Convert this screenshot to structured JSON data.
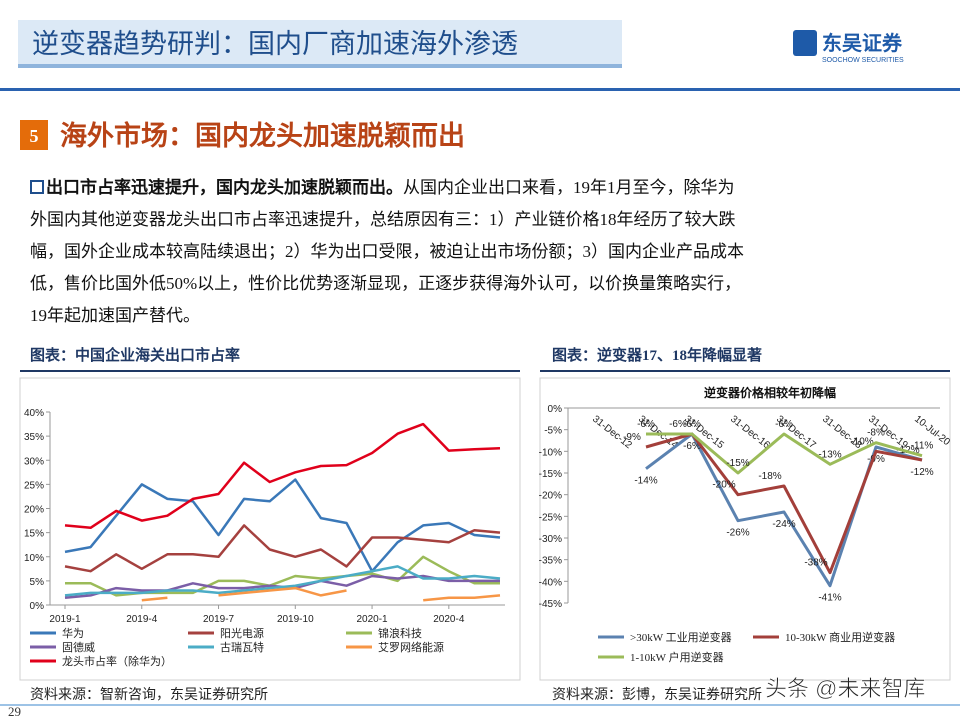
{
  "header": {
    "title": "逆变器趋势研判：国内厂商加速海外渗透",
    "logo_cn": "东吴证券",
    "logo_en": "SOOCHOW SECURITIES"
  },
  "section": {
    "number": "5",
    "title": "海外市场：国内龙头加速脱颖而出"
  },
  "body": {
    "lead": "出口市占率迅速提升，国内龙头加速脱颖而出。",
    "lines": [
      "从国内企业出口来看，19年1月至今，除华为",
      "外国内其他逆变器龙头出口市占率迅速提升，总结原因有三：1）产业链价格18年经历了较大跌",
      "幅，国外企业成本较高陆续退出；2）华为出口受限，被迫让出市场份额；3）国内企业产品成本",
      "低，售价比国外低50%以上，性价比优势逐渐显现，正逐步获得海外认可，以价换量策略实行，",
      "19年起加速国产替代。"
    ]
  },
  "chart_data": [
    {
      "type": "line",
      "caption": "图表：中国企业海关出口市占率",
      "source": "资料来源：智新咨询，东吴证券研究所",
      "categories": [
        "2019-1",
        null,
        null,
        "2019-4",
        null,
        null,
        "2019-7",
        null,
        null,
        "2019-10",
        null,
        null,
        "2020-1",
        null,
        null,
        "2020-4",
        null,
        null
      ],
      "ylim": [
        0,
        40
      ],
      "yticks": [
        {
          "value": 0,
          "label": "0%"
        },
        {
          "value": 5,
          "label": "5%"
        },
        {
          "value": 10,
          "label": "10%"
        },
        {
          "value": 15,
          "label": "15%"
        },
        {
          "value": 20,
          "label": "20%"
        },
        {
          "value": 25,
          "label": "25%"
        },
        {
          "value": 30,
          "label": "30%"
        },
        {
          "value": 35,
          "label": "35%"
        },
        {
          "value": 40,
          "label": "40%"
        }
      ],
      "series": [
        {
          "name": "华为",
          "color": "#3a78b8",
          "values": [
            11,
            12,
            18.5,
            25,
            22,
            21.5,
            14.5,
            22,
            21.5,
            26,
            18,
            17,
            7,
            13,
            16.5,
            17,
            14.5,
            14
          ]
        },
        {
          "name": "阳光电源",
          "color": "#a5413f",
          "values": [
            8,
            7,
            10.5,
            7.5,
            10.5,
            10.5,
            10,
            16.5,
            11.5,
            10,
            11.5,
            8,
            14,
            14,
            13.5,
            13,
            15.5,
            15
          ]
        },
        {
          "name": "锦浪科技",
          "color": "#9bbb59",
          "values": [
            4.5,
            4.5,
            2,
            2.5,
            2.5,
            2.5,
            5,
            5,
            4,
            6,
            5.5,
            6,
            6.5,
            5,
            10,
            7,
            4.5,
            4.5
          ]
        },
        {
          "name": "固德威",
          "color": "#7b5ea7",
          "values": [
            1.5,
            2,
            3.5,
            3,
            3,
            4.5,
            3.5,
            3.5,
            4,
            3.5,
            5,
            4,
            6,
            5.5,
            6,
            5,
            5,
            5
          ]
        },
        {
          "name": "古瑞瓦特",
          "color": "#4bacc6",
          "values": [
            2,
            2.5,
            2.5,
            2.5,
            3,
            3,
            2.5,
            3,
            3.5,
            4,
            5,
            6,
            7,
            8,
            5.5,
            5.5,
            6,
            5.5
          ]
        },
        {
          "name": "艾罗网络能源",
          "color": "#f79646",
          "values": [
            null,
            null,
            null,
            1,
            1.5,
            null,
            2,
            2.5,
            3,
            3.5,
            2,
            3,
            null,
            null,
            1,
            1.5,
            1.5,
            2
          ]
        },
        {
          "name": "龙头市占率（除华为）",
          "color": "#e0001b",
          "values": [
            16.5,
            16,
            19.5,
            17.5,
            18.5,
            22,
            23,
            29.5,
            25.5,
            27.5,
            28.8,
            29,
            31.5,
            35.5,
            37.5,
            32,
            32.3,
            32.5
          ]
        }
      ]
    },
    {
      "type": "line",
      "caption": "图表：逆变器17、18年降幅显著",
      "source": "资料来源：彭博，东吴证券研究所",
      "title": "逆变器价格相较年初降幅",
      "categories": [
        "31-Dec-12",
        "31-Dec-14",
        "31-Dec-15",
        "31-Dec-16",
        "31-Dec-17",
        "31-Dec-18",
        "31-Dec-19",
        "10-Jul-20"
      ],
      "ylim": [
        -45,
        0
      ],
      "yticks": [
        {
          "value": 0,
          "label": "0%"
        },
        {
          "value": -5,
          "label": "-5%"
        },
        {
          "value": -10,
          "label": "-10%"
        },
        {
          "value": -15,
          "label": "-15%"
        },
        {
          "value": -20,
          "label": "-20%"
        },
        {
          "value": -25,
          "label": "-25%"
        },
        {
          "value": -30,
          "label": "-30%"
        },
        {
          "value": -35,
          "label": "-35%"
        },
        {
          "value": -40,
          "label": "-40%"
        },
        {
          "value": -45,
          "label": "-45%"
        }
      ],
      "series": [
        {
          "name": ">30kW 工业用逆变器",
          "color": "#5b82b0",
          "values": [
            null,
            -14,
            -6,
            -26,
            -24,
            -41,
            -9,
            -12
          ],
          "value_labels": [
            null,
            "-14%",
            "-6%",
            "-26%",
            "-24%",
            "-41%",
            "-9%",
            "-12%"
          ]
        },
        {
          "name": "10-30kW 商业用逆变器",
          "color": "#a33f3a",
          "values": [
            null,
            -9,
            -6,
            -20,
            -18,
            -38,
            -10,
            -12
          ],
          "value_labels": [
            null,
            "-9%",
            "-6%",
            "-20%",
            "-18%",
            "-38%",
            "-10%",
            "-12%"
          ]
        },
        {
          "name": "1-10kW 户用逆变器",
          "color": "#9bbb59",
          "values": [
            null,
            -6,
            -6,
            -15,
            -6,
            -13,
            -8,
            -11
          ],
          "value_labels": [
            null,
            "-6%",
            "-6%",
            "-15%",
            "-6%",
            "-13%",
            "-8%",
            "-11%"
          ]
        }
      ]
    }
  ],
  "page": "29",
  "watermark": "头条 @未来智库"
}
